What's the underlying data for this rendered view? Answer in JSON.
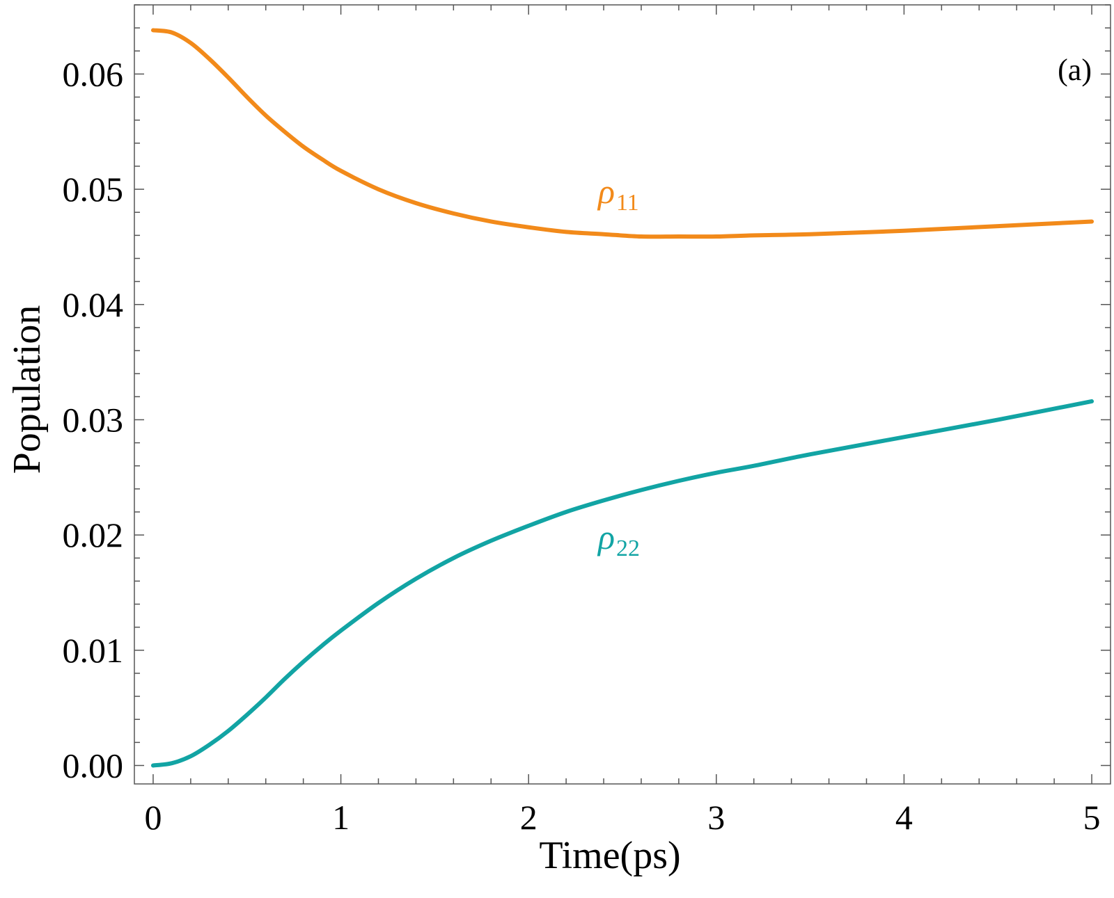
{
  "chart_data": {
    "type": "line",
    "panel_label": "(a)",
    "xlabel": "Time(ps)",
    "ylabel": "Population",
    "xlim": [
      -0.1,
      5.1
    ],
    "ylim": [
      -0.0016,
      0.066
    ],
    "x_ticks": [
      0,
      1,
      2,
      3,
      4,
      5
    ],
    "x_tick_labels": [
      "0",
      "1",
      "2",
      "3",
      "4",
      "5"
    ],
    "y_ticks": [
      0.0,
      0.01,
      0.02,
      0.03,
      0.04,
      0.05,
      0.06
    ],
    "y_tick_labels": [
      "0.00",
      "0.01",
      "0.02",
      "0.03",
      "0.04",
      "0.05",
      "0.06"
    ],
    "grid": false,
    "series": [
      {
        "name": "ρ11",
        "label_symbol": "ρ",
        "label_subscript": "11",
        "color": "#F28A1A",
        "label_at": [
          2.37,
          0.0488
        ],
        "x": [
          0,
          0.1,
          0.2,
          0.3,
          0.4,
          0.5,
          0.6,
          0.7,
          0.8,
          0.9,
          1.0,
          1.2,
          1.4,
          1.6,
          1.8,
          2.0,
          2.2,
          2.4,
          2.6,
          2.8,
          3.0,
          3.2,
          3.5,
          4.0,
          4.5,
          5.0
        ],
        "y": [
          0.0638,
          0.0636,
          0.0627,
          0.0613,
          0.0597,
          0.058,
          0.0564,
          0.055,
          0.0537,
          0.0526,
          0.0516,
          0.05,
          0.0488,
          0.0479,
          0.0472,
          0.0467,
          0.0463,
          0.0461,
          0.0459,
          0.0459,
          0.0459,
          0.046,
          0.0461,
          0.0464,
          0.0468,
          0.0472
        ]
      },
      {
        "name": "ρ22",
        "label_symbol": "ρ",
        "label_subscript": "22",
        "color": "#12A4A4",
        "label_at": [
          2.37,
          0.0188
        ],
        "x": [
          0,
          0.1,
          0.2,
          0.3,
          0.4,
          0.5,
          0.6,
          0.7,
          0.8,
          0.9,
          1.0,
          1.2,
          1.4,
          1.6,
          1.8,
          2.0,
          2.2,
          2.4,
          2.6,
          2.8,
          3.0,
          3.2,
          3.5,
          4.0,
          4.5,
          5.0
        ],
        "y": [
          0.0,
          0.0002,
          0.0008,
          0.0018,
          0.003,
          0.0044,
          0.0059,
          0.0075,
          0.009,
          0.0104,
          0.0117,
          0.0141,
          0.0162,
          0.018,
          0.0195,
          0.0208,
          0.022,
          0.023,
          0.0239,
          0.0247,
          0.0254,
          0.026,
          0.027,
          0.0285,
          0.03,
          0.0316
        ]
      }
    ]
  }
}
